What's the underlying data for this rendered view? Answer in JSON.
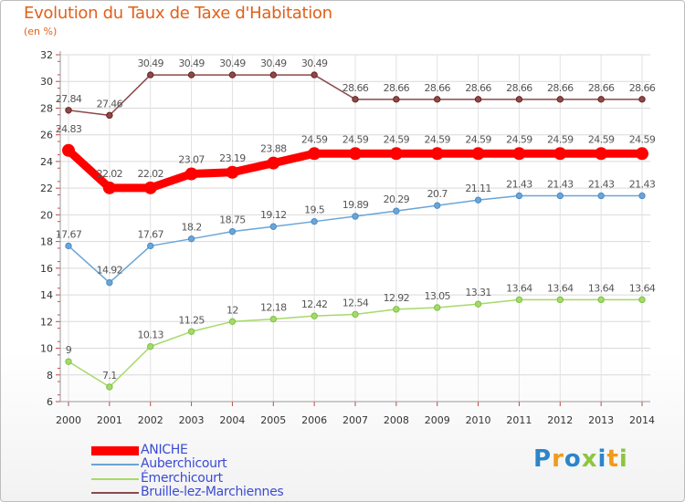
{
  "title": "Evolution du Taux de Taxe d'Habitation",
  "unit": "(en %)",
  "logo": {
    "letters": [
      "P",
      "r",
      "o",
      "x",
      "i",
      "t",
      "i"
    ],
    "colors": [
      "#2c86c8",
      "#f29a1a",
      "#2c86c8",
      "#8cc63e",
      "#2c86c8",
      "#f29a1a",
      "#8cc63e"
    ]
  },
  "chart_data": {
    "type": "line",
    "title": "Evolution du Taux de Taxe d'Habitation",
    "ylabel": "(en %)",
    "xlabel": "",
    "x": [
      "2000",
      "2001",
      "2002",
      "2003",
      "2004",
      "2005",
      "2006",
      "2007",
      "2008",
      "2009",
      "2010",
      "2011",
      "2012",
      "2013",
      "2014"
    ],
    "ylim": [
      6,
      32
    ],
    "yticks": [
      "6",
      "8",
      "10",
      "12",
      "14",
      "16",
      "18",
      "20",
      "22",
      "24",
      "26",
      "28",
      "30",
      "32"
    ],
    "grid": true,
    "legend": "bottom-left",
    "series": [
      {
        "name": "ANICHE",
        "color": "#ff0000",
        "marker": "#e00000",
        "values": [
          24.83,
          22.02,
          22.02,
          23.07,
          23.19,
          23.88,
          24.59,
          24.59,
          24.59,
          24.59,
          24.59,
          24.59,
          24.59,
          24.59,
          24.59
        ],
        "labels": [
          "24.83",
          "22.02",
          "22.02",
          "23.07",
          "23.19",
          "23.88",
          "24.59",
          "24.59",
          "24.59",
          "24.59",
          "24.59",
          "24.59",
          "24.59",
          "24.59",
          "24.59"
        ]
      },
      {
        "name": "Auberchicourt",
        "color": "#6aa5d6",
        "marker": "#4a8cc8",
        "values": [
          17.67,
          14.92,
          17.67,
          18.2,
          18.75,
          19.12,
          19.5,
          19.89,
          20.29,
          20.7,
          21.11,
          21.43,
          21.43,
          21.43,
          21.43
        ],
        "labels": [
          "17.67",
          "14.92",
          "17.67",
          "18.2",
          "18.75",
          "19.12",
          "19.5",
          "19.89",
          "20.29",
          "20.7",
          "21.11",
          "21.43",
          "21.43",
          "21.43",
          "21.43"
        ]
      },
      {
        "name": "Émerchicourt",
        "color": "#a6d96a",
        "marker": "#7cc142",
        "values": [
          9,
          7.1,
          10.13,
          11.25,
          12,
          12.18,
          12.42,
          12.54,
          12.92,
          13.05,
          13.31,
          13.64,
          13.64,
          13.64,
          13.64
        ],
        "labels": [
          "9",
          "7.1",
          "10.13",
          "11.25",
          "12",
          "12.18",
          "12.42",
          "12.54",
          "12.92",
          "13.05",
          "13.31",
          "13.64",
          "13.64",
          "13.64",
          "13.64"
        ]
      },
      {
        "name": "Bruille-lez-Marchiennes",
        "color": "#8b4a4a",
        "marker": "#6b2020",
        "values": [
          27.84,
          27.46,
          30.49,
          30.49,
          30.49,
          30.49,
          30.49,
          28.66,
          28.66,
          28.66,
          28.66,
          28.66,
          28.66,
          28.66,
          28.66
        ],
        "labels": [
          "27.84",
          "27.46",
          "30.49",
          "30.49",
          "30.49",
          "30.49",
          "30.49",
          "28.66",
          "28.66",
          "28.66",
          "28.66",
          "28.66",
          "28.66",
          "28.66",
          "28.66"
        ]
      }
    ]
  }
}
